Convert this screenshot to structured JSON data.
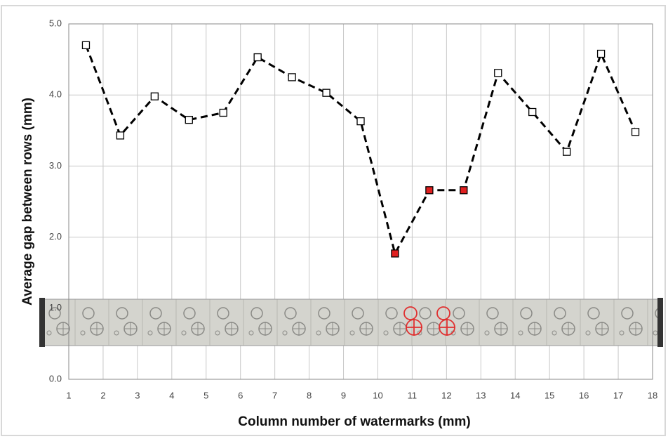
{
  "chart_data": {
    "type": "line",
    "x_label": "Column number of watermarks (mm)",
    "y_label": "Average gap between rows (mm)",
    "x": [
      1.5,
      2.5,
      3.5,
      4.5,
      5.5,
      6.5,
      7.5,
      8.5,
      9.5,
      10.5,
      11.5,
      12.5,
      13.5,
      14.5,
      15.5,
      16.5,
      17.5
    ],
    "values": [
      4.7,
      3.43,
      3.98,
      3.65,
      3.75,
      4.53,
      4.25,
      4.03,
      3.63,
      1.77,
      2.66,
      2.66,
      4.31,
      3.76,
      3.2,
      4.58,
      3.48
    ],
    "color": "#000000",
    "marker_colors": [
      "#ffffff",
      "#ffffff",
      "#ffffff",
      "#ffffff",
      "#ffffff",
      "#ffffff",
      "#ffffff",
      "#ffffff",
      "#ffffff",
      "#e02020",
      "#e02020",
      "#e02020",
      "#ffffff",
      "#ffffff",
      "#ffffff",
      "#ffffff",
      "#ffffff"
    ],
    "xlim": [
      1,
      18
    ],
    "xticks": [
      1,
      2,
      3,
      4,
      5,
      6,
      7,
      8,
      9,
      10,
      11,
      12,
      13,
      14,
      15,
      16,
      17,
      18
    ],
    "ylim": [
      0,
      5
    ],
    "yticks": [
      {
        "value": 0,
        "label": "0.0"
      },
      {
        "value": 1,
        "label": "1.0"
      },
      {
        "value": 2,
        "label": "2.0"
      },
      {
        "value": 3,
        "label": "3.0"
      },
      {
        "value": 4,
        "label": "4.0"
      },
      {
        "value": 5,
        "label": "5.0"
      }
    ],
    "grid": true
  }
}
